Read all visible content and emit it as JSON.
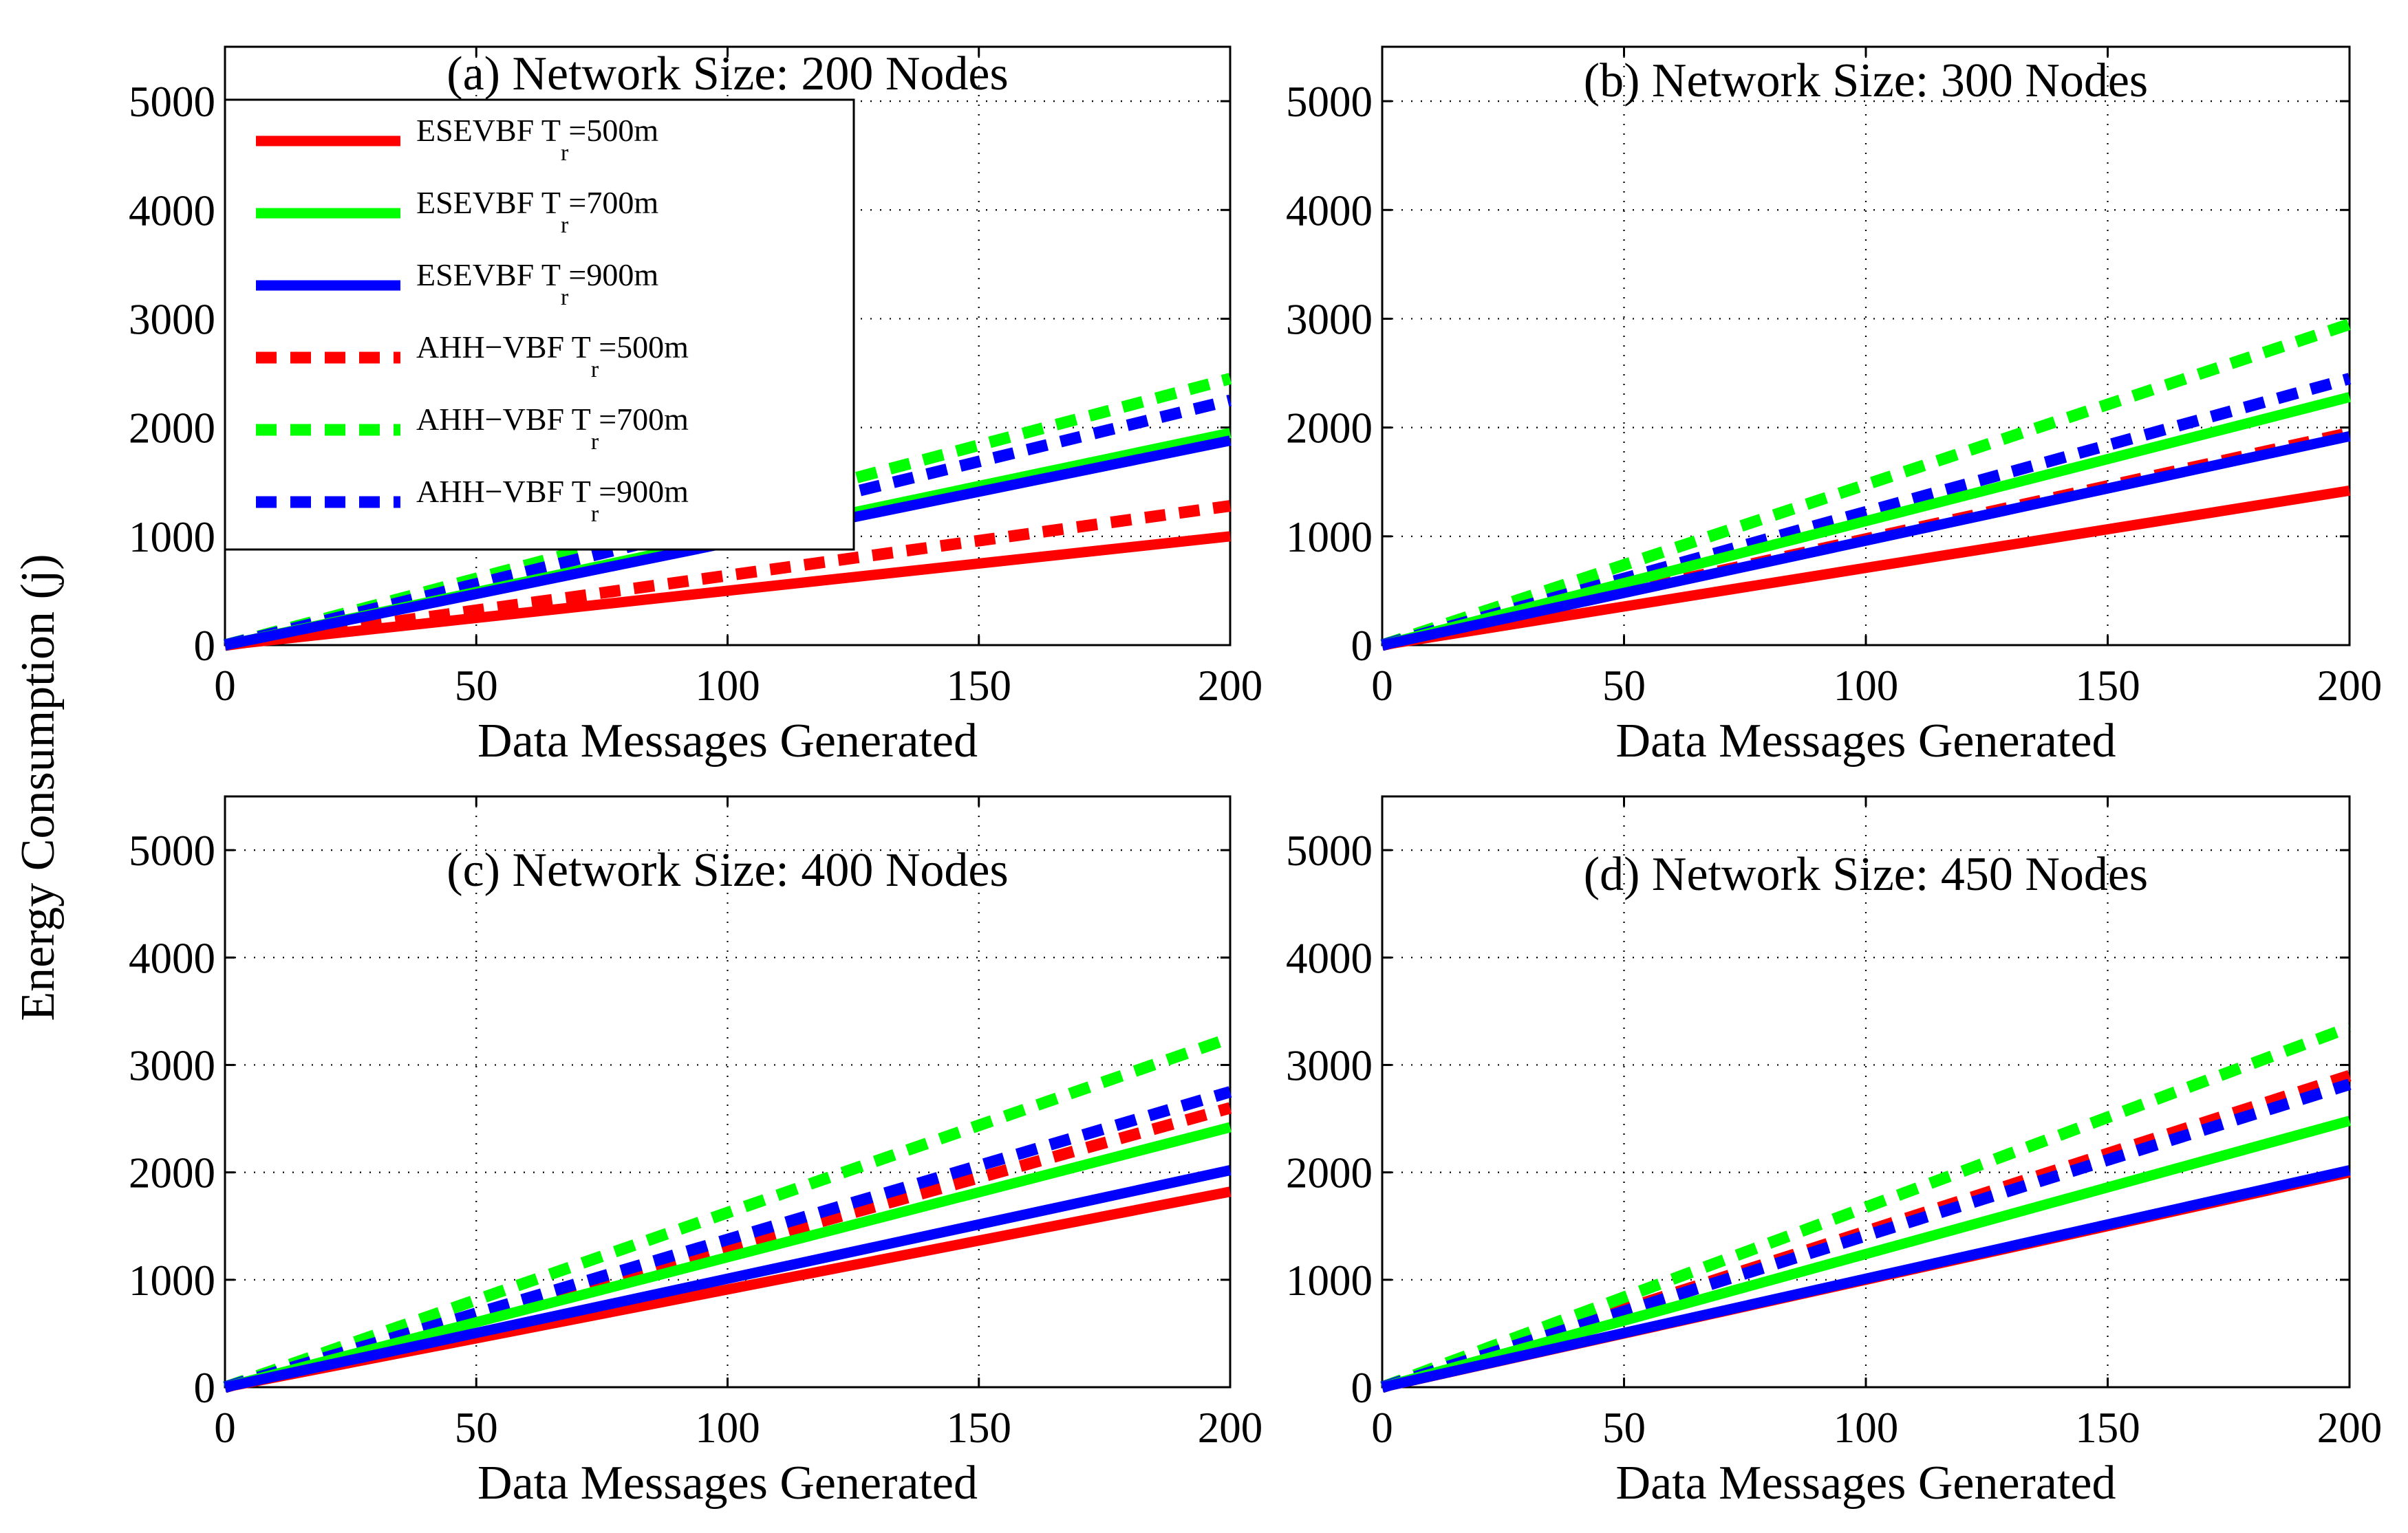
{
  "figure": {
    "ylabel": "Energy Consumption (j)"
  },
  "colors": {
    "red": "#ff0000",
    "green": "#00ff00",
    "blue": "#0000ff"
  },
  "legend": {
    "entries": [
      {
        "prefix": "ESEVBF T",
        "sub": "r",
        "suffix": "=500m",
        "color": "red",
        "dashed": false
      },
      {
        "prefix": "ESEVBF T",
        "sub": "r",
        "suffix": "=700m",
        "color": "green",
        "dashed": false
      },
      {
        "prefix": "ESEVBF T",
        "sub": "r",
        "suffix": "=900m",
        "color": "blue",
        "dashed": false
      },
      {
        "prefix": "AHH−VBF T",
        "sub": "r",
        "suffix": "=500m",
        "color": "red",
        "dashed": true
      },
      {
        "prefix": "AHH−VBF T",
        "sub": "r",
        "suffix": "=700m",
        "color": "green",
        "dashed": true
      },
      {
        "prefix": "AHH−VBF T",
        "sub": "r",
        "suffix": "=900m",
        "color": "blue",
        "dashed": true
      }
    ]
  },
  "chart_data": [
    {
      "type": "line",
      "title": "(a) Network Size: 200 Nodes",
      "xlabel": "Data Messages Generated",
      "ylabel": "Energy Consumption (j)",
      "xlim": [
        0,
        200
      ],
      "ylim": [
        0,
        5500
      ],
      "xticks": [
        0,
        50,
        100,
        150,
        200
      ],
      "yticks": [
        0,
        1000,
        2000,
        3000,
        4000,
        5000
      ],
      "grid": true,
      "legend_position": "top-left",
      "series": [
        {
          "name": "ESEVBF Tr=500m",
          "x": [
            0,
            200
          ],
          "y": [
            0,
            1000
          ]
        },
        {
          "name": "ESEVBF Tr=700m",
          "x": [
            0,
            200
          ],
          "y": [
            0,
            1950
          ]
        },
        {
          "name": "ESEVBF Tr=900m",
          "x": [
            0,
            200
          ],
          "y": [
            0,
            1880
          ]
        },
        {
          "name": "AHH-VBF Tr=500m",
          "x": [
            0,
            200
          ],
          "y": [
            0,
            1280
          ]
        },
        {
          "name": "AHH-VBF Tr=700m",
          "x": [
            0,
            200
          ],
          "y": [
            0,
            2450
          ]
        },
        {
          "name": "AHH-VBF Tr=900m",
          "x": [
            0,
            200
          ],
          "y": [
            0,
            2250
          ]
        }
      ]
    },
    {
      "type": "line",
      "title": "(b) Network Size: 300 Nodes",
      "xlabel": "Data Messages Generated",
      "xlim": [
        0,
        200
      ],
      "ylim": [
        0,
        5500
      ],
      "xticks": [
        0,
        50,
        100,
        150,
        200
      ],
      "yticks": [
        0,
        1000,
        2000,
        3000,
        4000,
        5000
      ],
      "grid": true,
      "series": [
        {
          "name": "ESEVBF Tr=500m",
          "x": [
            0,
            200
          ],
          "y": [
            0,
            1420
          ]
        },
        {
          "name": "ESEVBF Tr=700m",
          "x": [
            0,
            200
          ],
          "y": [
            0,
            2280
          ]
        },
        {
          "name": "ESEVBF Tr=900m",
          "x": [
            0,
            200
          ],
          "y": [
            0,
            1920
          ]
        },
        {
          "name": "AHH-VBF Tr=500m",
          "x": [
            0,
            200
          ],
          "y": [
            0,
            1950
          ]
        },
        {
          "name": "AHH-VBF Tr=700m",
          "x": [
            0,
            200
          ],
          "y": [
            0,
            2950
          ]
        },
        {
          "name": "AHH-VBF Tr=900m",
          "x": [
            0,
            200
          ],
          "y": [
            0,
            2450
          ]
        }
      ]
    },
    {
      "type": "line",
      "title": "(c) Network Size: 400 Nodes",
      "xlabel": "Data Messages Generated",
      "xlim": [
        0,
        200
      ],
      "ylim": [
        0,
        5500
      ],
      "xticks": [
        0,
        50,
        100,
        150,
        200
      ],
      "yticks": [
        0,
        1000,
        2000,
        3000,
        4000,
        5000
      ],
      "grid": true,
      "series": [
        {
          "name": "ESEVBF Tr=500m",
          "x": [
            0,
            200
          ],
          "y": [
            0,
            1820
          ]
        },
        {
          "name": "ESEVBF Tr=700m",
          "x": [
            0,
            200
          ],
          "y": [
            0,
            2420
          ]
        },
        {
          "name": "ESEVBF Tr=900m",
          "x": [
            0,
            200
          ],
          "y": [
            0,
            2020
          ]
        },
        {
          "name": "AHH-VBF Tr=500m",
          "x": [
            0,
            200
          ],
          "y": [
            0,
            2600
          ]
        },
        {
          "name": "AHH-VBF Tr=700m",
          "x": [
            0,
            200
          ],
          "y": [
            0,
            3250
          ]
        },
        {
          "name": "AHH-VBF Tr=900m",
          "x": [
            0,
            200
          ],
          "y": [
            0,
            2750
          ]
        }
      ]
    },
    {
      "type": "line",
      "title": "(d) Network Size: 450 Nodes",
      "xlabel": "Data Messages Generated",
      "xlim": [
        0,
        200
      ],
      "ylim": [
        0,
        5500
      ],
      "xticks": [
        0,
        50,
        100,
        150,
        200
      ],
      "yticks": [
        0,
        1000,
        2000,
        3000,
        4000,
        5000
      ],
      "grid": true,
      "series": [
        {
          "name": "ESEVBF Tr=500m",
          "x": [
            0,
            200
          ],
          "y": [
            0,
            2000
          ]
        },
        {
          "name": "ESEVBF Tr=700m",
          "x": [
            0,
            200
          ],
          "y": [
            0,
            2480
          ]
        },
        {
          "name": "ESEVBF Tr=900m",
          "x": [
            0,
            200
          ],
          "y": [
            0,
            2020
          ]
        },
        {
          "name": "AHH-VBF Tr=500m",
          "x": [
            0,
            200
          ],
          "y": [
            0,
            2900
          ]
        },
        {
          "name": "AHH-VBF Tr=700m",
          "x": [
            0,
            200
          ],
          "y": [
            0,
            3350
          ]
        },
        {
          "name": "AHH-VBF Tr=900m",
          "x": [
            0,
            200
          ],
          "y": [
            0,
            2820
          ]
        }
      ]
    }
  ]
}
